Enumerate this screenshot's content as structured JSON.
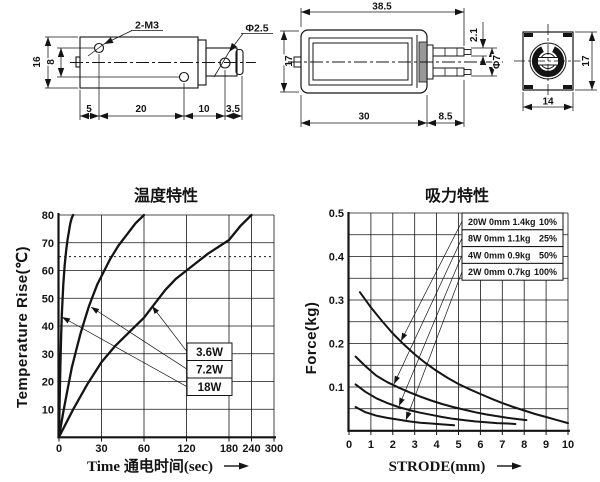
{
  "page": {
    "bg": "#ffffff",
    "ink": "#141414"
  },
  "drawings": {
    "side_view": {
      "m3": "2-M3",
      "phi": "Φ2.5",
      "height": "16",
      "hole_gap": "8",
      "mid_height": "17",
      "c5": "5",
      "c20": "20",
      "c10": "10",
      "c35": "3.5"
    },
    "section_view": {
      "total": "38.5",
      "body": "30",
      "tip": "8.5",
      "lug": "2.1",
      "fork": "Φ7"
    },
    "front_view": {
      "width": "14",
      "height": "17"
    }
  },
  "chart_data": [
    {
      "type": "line",
      "title": "温度特性",
      "xlabel": "Time 通电时间(sec)",
      "ylabel": "Temperature Rise(℃)",
      "x_ticks": [
        0,
        30,
        60,
        120,
        180,
        240,
        300
      ],
      "y_ticks": [
        10,
        20,
        30,
        40,
        50,
        60,
        70,
        80
      ],
      "xlim": [
        0,
        300
      ],
      "ylim": [
        0,
        80
      ],
      "grid": true,
      "dashed_line_y": 65,
      "label_boxes": [
        "3.6W",
        "7.2W",
        "18W"
      ],
      "series": [
        {
          "name": "18W",
          "points": [
            [
              0,
              0
            ],
            [
              0.5,
              14
            ],
            [
              1,
              26
            ],
            [
              1.5,
              36
            ],
            [
              2,
              44
            ],
            [
              3,
              55
            ],
            [
              4,
              62
            ],
            [
              5,
              67
            ],
            [
              6,
              71
            ],
            [
              7,
              74
            ],
            [
              8,
              77
            ],
            [
              9,
              79
            ],
            [
              10,
              80
            ]
          ]
        },
        {
          "name": "7.2W",
          "points": [
            [
              0,
              0
            ],
            [
              3,
              9
            ],
            [
              6,
              17
            ],
            [
              9,
              25
            ],
            [
              12,
              31
            ],
            [
              15,
              37
            ],
            [
              18,
              42
            ],
            [
              21,
              47
            ],
            [
              24,
              51
            ],
            [
              27,
              55
            ],
            [
              30,
              58
            ],
            [
              36,
              64
            ],
            [
              42,
              69
            ],
            [
              48,
              73
            ],
            [
              54,
              77
            ],
            [
              60,
              80
            ]
          ]
        },
        {
          "name": "3.6W",
          "points": [
            [
              0,
              0
            ],
            [
              10,
              10
            ],
            [
              20,
              19
            ],
            [
              30,
              27
            ],
            [
              40,
              33
            ],
            [
              50,
              38
            ],
            [
              60,
              43
            ],
            [
              72,
              47
            ],
            [
              90,
              53
            ],
            [
              105,
              57
            ],
            [
              120,
              60
            ],
            [
              150,
              66
            ],
            [
              180,
              71
            ],
            [
              210,
              76
            ],
            [
              240,
              80
            ]
          ]
        }
      ]
    },
    {
      "type": "line",
      "title": "吸力特性",
      "xlabel": "STRODE(mm)",
      "ylabel": "Force(kg)",
      "x_ticks": [
        0,
        1,
        2,
        3,
        4,
        5,
        6,
        7,
        8,
        9,
        10
      ],
      "y_ticks": [
        0.1,
        0.2,
        0.3,
        0.4,
        0.5
      ],
      "y_grid_step": 0.05,
      "xlim": [
        0,
        10
      ],
      "ylim": [
        0,
        0.5
      ],
      "grid": true,
      "legend": [
        {
          "label": "20W 0mm 1.4kg",
          "duty": "10%"
        },
        {
          "label": "8W 0mm 1.1kg",
          "duty": "25%"
        },
        {
          "label": "4W 0mm 0.9kg",
          "duty": "50%"
        },
        {
          "label": "2W 0mm 0.7kg",
          "duty": "100%"
        }
      ],
      "series": [
        {
          "name": "20W",
          "points": [
            [
              0.5,
              0.318
            ],
            [
              1,
              0.283
            ],
            [
              1.5,
              0.252
            ],
            [
              2,
              0.223
            ],
            [
              2.5,
              0.198
            ],
            [
              3,
              0.175
            ],
            [
              3.5,
              0.155
            ],
            [
              4,
              0.137
            ],
            [
              4.5,
              0.121
            ],
            [
              5,
              0.107
            ],
            [
              5.5,
              0.095
            ],
            [
              6,
              0.084
            ],
            [
              6.5,
              0.073
            ],
            [
              7,
              0.063
            ],
            [
              7.5,
              0.054
            ],
            [
              8,
              0.046
            ],
            [
              8.5,
              0.038
            ],
            [
              9,
              0.031
            ],
            [
              9.5,
              0.024
            ],
            [
              10,
              0.017
            ]
          ]
        },
        {
          "name": "8W",
          "points": [
            [
              0.3,
              0.17
            ],
            [
              0.75,
              0.148
            ],
            [
              1.25,
              0.126
            ],
            [
              1.75,
              0.111
            ],
            [
              2.25,
              0.099
            ],
            [
              2.75,
              0.088
            ],
            [
              3.25,
              0.078
            ],
            [
              3.75,
              0.069
            ],
            [
              4.25,
              0.061
            ],
            [
              4.75,
              0.054
            ],
            [
              5.25,
              0.048
            ],
            [
              5.75,
              0.042
            ],
            [
              6.25,
              0.037
            ],
            [
              6.75,
              0.033
            ],
            [
              7.25,
              0.029
            ],
            [
              7.75,
              0.026
            ],
            [
              8.1,
              0.024
            ]
          ]
        },
        {
          "name": "4W",
          "points": [
            [
              0.3,
              0.106
            ],
            [
              0.75,
              0.089
            ],
            [
              1.25,
              0.074
            ],
            [
              1.75,
              0.063
            ],
            [
              2.25,
              0.054
            ],
            [
              2.75,
              0.047
            ],
            [
              3.25,
              0.041
            ],
            [
              3.75,
              0.036
            ],
            [
              4.25,
              0.031
            ],
            [
              4.75,
              0.027
            ],
            [
              5.25,
              0.024
            ],
            [
              5.75,
              0.021
            ],
            [
              6.25,
              0.019
            ],
            [
              6.75,
              0.017
            ],
            [
              7.25,
              0.016
            ],
            [
              7.6,
              0.015
            ]
          ]
        },
        {
          "name": "2W",
          "points": [
            [
              0.3,
              0.054
            ],
            [
              0.75,
              0.042
            ],
            [
              1.25,
              0.034
            ],
            [
              1.75,
              0.029
            ],
            [
              2.25,
              0.025
            ],
            [
              2.75,
              0.021
            ],
            [
              3.25,
              0.018
            ],
            [
              3.75,
              0.016
            ],
            [
              4.25,
              0.014
            ],
            [
              4.8,
              0.012
            ]
          ]
        }
      ]
    }
  ]
}
